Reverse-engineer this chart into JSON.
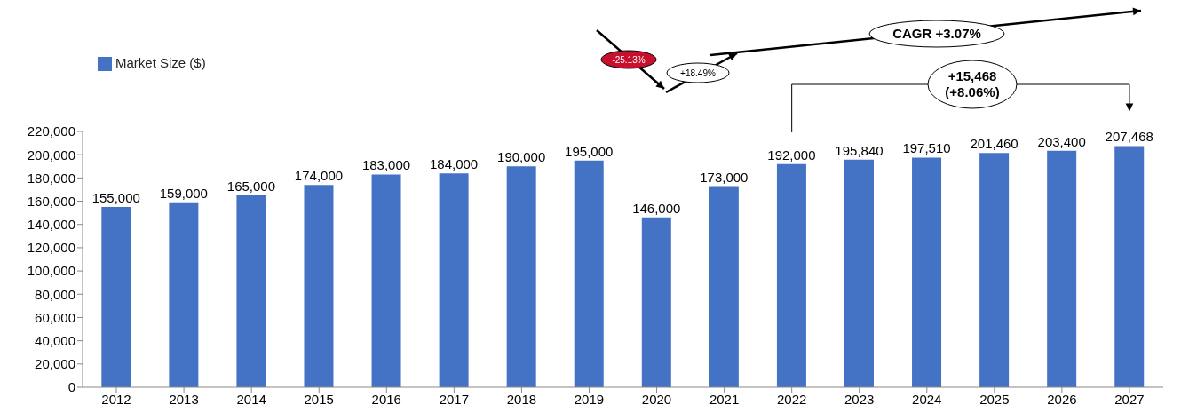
{
  "chart_data": {
    "type": "bar",
    "categories": [
      "2012",
      "2013",
      "2014",
      "2015",
      "2016",
      "2017",
      "2018",
      "2019",
      "2020",
      "2021",
      "2022",
      "2023",
      "2024",
      "2025",
      "2026",
      "2027"
    ],
    "series": [
      {
        "name": "Market Size ($)",
        "color": "#4472c4",
        "values": [
          155000,
          159000,
          165000,
          174000,
          183000,
          184000,
          190000,
          195000,
          146000,
          173000,
          192000,
          195840,
          197510,
          201460,
          203400,
          207468
        ],
        "value_labels": [
          "155,000",
          "159,000",
          "165,000",
          "174,000",
          "183,000",
          "184,000",
          "190,000",
          "195,000",
          "146,000",
          "173,000",
          "192,000",
          "195,840",
          "197,510",
          "201,460",
          "203,400",
          "207,468"
        ]
      }
    ],
    "ylim": [
      0,
      220000
    ],
    "yticks": [
      {
        "value": 0,
        "label": "0"
      },
      {
        "value": 20000,
        "label": "20,000"
      },
      {
        "value": 40000,
        "label": "40,000"
      },
      {
        "value": 60000,
        "label": "60,000"
      },
      {
        "value": 80000,
        "label": "80,000"
      },
      {
        "value": 100000,
        "label": "100,000"
      },
      {
        "value": 120000,
        "label": "120,000"
      },
      {
        "value": 140000,
        "label": "140,000"
      },
      {
        "value": 160000,
        "label": "160,000"
      },
      {
        "value": 180000,
        "label": "180,000"
      },
      {
        "value": 200000,
        "label": "200,000"
      },
      {
        "value": 220000,
        "label": "220,000"
      }
    ],
    "legend": "top left",
    "grid": false,
    "annotations": [
      "-25.13%",
      "+18.49%",
      "CAGR +3.07%",
      "+15,468\n(+8.06%)"
    ]
  }
}
